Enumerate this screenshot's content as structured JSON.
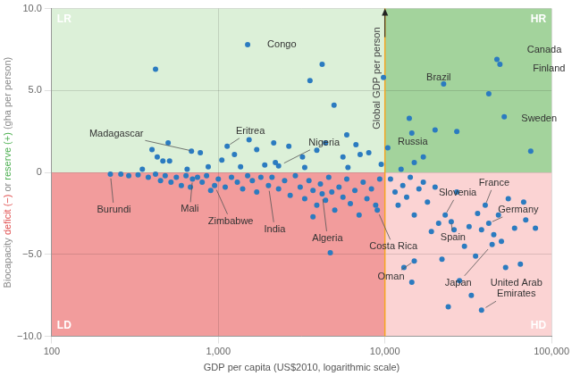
{
  "chart_data": {
    "type": "scatter",
    "x_label": "GDP per capita (US$2010, logarithmic scale)",
    "y_label": [
      {
        "text": "Biocapacity ",
        "color": "#8a8a8a"
      },
      {
        "text": "deficit (−)",
        "color": "#e05050"
      },
      {
        "text": " or ",
        "color": "#8a8a8a"
      },
      {
        "text": "reserve (+)",
        "color": "#4caf50"
      },
      {
        "text": " (gha per person)",
        "color": "#8a8a8a"
      }
    ],
    "log": "x",
    "grid": true,
    "marker": "circle",
    "color": "#2b7bc0",
    "xlim": [
      100,
      100000
    ],
    "xticks": [
      100,
      {
        "value": 1000,
        "label": "1,000"
      },
      {
        "value": 10000,
        "label": "10,000"
      },
      {
        "value": 100000,
        "label": "100,000"
      }
    ],
    "ylim": [
      -10,
      10
    ],
    "yticks": [
      {
        "value": -10,
        "label": "−10.0"
      },
      {
        "value": -5,
        "label": "−5.0"
      },
      0,
      {
        "value": 5,
        "label": "5.0"
      },
      {
        "value": 10,
        "label": "10.0"
      }
    ],
    "vertical_line": {
      "x": 10000,
      "label": "Global GDP per person",
      "color": "#f5a623"
    },
    "quadrant_split_y": 0,
    "quadrants": [
      {
        "label": "LR",
        "position": "top-left",
        "color": "#dcf0d8"
      },
      {
        "label": "HR",
        "position": "top-right",
        "color": "#a3d39c"
      },
      {
        "label": "LD",
        "position": "bottom-left",
        "color": "#f29c9c"
      },
      {
        "label": "HD",
        "position": "bottom-right",
        "color": "#fbd3d3"
      }
    ],
    "x": [
      1500,
      780,
      1130,
      2300,
      9800,
      10400,
      47000,
      49000,
      52000,
      225,
      700,
      950,
      2000,
      4200,
      9000,
      23000,
      40000,
      42000,
      25000,
      15000,
      44000,
      38000,
      420,
      400,
      430,
      465,
      500,
      510,
      690,
      1050,
      1250,
      1360,
      1530,
      1700,
      2150,
      2650,
      3550,
      4200,
      4950,
      4400,
      5900,
      6700,
      7100,
      8000,
      5600,
      3900,
      3200,
      2200,
      1900,
      870,
      650,
      350,
      3300,
      6000,
      9500,
      14000,
      14500,
      15000,
      17000,
      20000,
      22500,
      27000,
      42000,
      75000,
      12500,
      260,
      290,
      330,
      380,
      420,
      450,
      480,
      520,
      560,
      600,
      640,
      680,
      750,
      800,
      850,
      900,
      1000,
      1100,
      1200,
      1300,
      1400,
      1500,
      1600,
      1700,
      1800,
      2100,
      2300,
      2500,
      2700,
      2900,
      3100,
      3300,
      3500,
      3700,
      3900,
      4100,
      4400,
      4600,
      4800,
      5000,
      5300,
      5600,
      5900,
      6200,
      6600,
      7000,
      7400,
      7800,
      8300,
      8800,
      9300,
      4700,
      3700,
      10800,
      11500,
      12000,
      12800,
      13500,
      14200,
      15000,
      16000,
      17000,
      18000,
      19000,
      20000,
      21000,
      22000,
      24000,
      26000,
      27000,
      28000,
      30000,
      32000,
      33000,
      35000,
      36000,
      38000,
      45000,
      48000,
      50000,
      53000,
      55000,
      60000,
      65000,
      70000,
      80000,
      68000,
      14500,
      13000
    ],
    "values": [
      7.8,
      1.2,
      1.6,
      0.4,
      5.8,
      1.5,
      6.9,
      6.6,
      3.4,
      -0.1,
      -0.4,
      -0.8,
      -0.8,
      -1.3,
      -2.3,
      -2.6,
      -2.0,
      -3.1,
      -3.0,
      -5.4,
      -4.4,
      -8.4,
      6.3,
      1.4,
      0.95,
      0.7,
      1.8,
      0.7,
      1.3,
      0.75,
      1.1,
      0.35,
      2.0,
      1.4,
      1.8,
      1.6,
      5.6,
      6.6,
      4.1,
      1.8,
      2.3,
      1.7,
      1.1,
      1.2,
      0.95,
      1.35,
      0.95,
      0.6,
      0.45,
      0.35,
      0.2,
      0.2,
      0.3,
      0.3,
      0.5,
      3.3,
      2.4,
      0.6,
      0.95,
      2.6,
      5.4,
      2.5,
      4.8,
      1.3,
      0.2,
      -0.1,
      -0.2,
      -0.15,
      -0.3,
      -0.1,
      -0.5,
      -0.2,
      -0.6,
      -0.3,
      -0.8,
      -0.2,
      -0.9,
      -0.3,
      -0.6,
      -0.2,
      -1.1,
      -0.4,
      -0.9,
      -0.3,
      -0.6,
      -1.0,
      -0.2,
      -0.5,
      -1.2,
      -0.3,
      -0.3,
      -1.0,
      -0.5,
      -1.4,
      -0.2,
      -0.9,
      -1.6,
      -0.5,
      -1.1,
      -2.0,
      -0.7,
      -1.7,
      -0.3,
      -1.2,
      -2.3,
      -0.9,
      -1.5,
      -0.4,
      -1.9,
      -1.1,
      -2.6,
      -0.6,
      -1.6,
      -1.0,
      -2.0,
      -0.4,
      -4.9,
      -2.7,
      -0.4,
      -1.2,
      -2.0,
      -0.8,
      -1.5,
      -0.3,
      -2.6,
      -1.0,
      -0.6,
      -1.8,
      -3.6,
      -0.9,
      -3.1,
      -5.3,
      -8.2,
      -3.5,
      -1.2,
      -6.6,
      -4.5,
      -3.3,
      -7.5,
      -5.1,
      -2.5,
      -3.5,
      -3.8,
      -2.6,
      -4.2,
      -5.8,
      -1.6,
      -3.4,
      -5.6,
      -2.9,
      -3.4,
      -1.8,
      -6.7,
      -5.8
    ],
    "point_labels": [
      "Congo",
      "Madagascar",
      "Eritrea",
      "Nigeria",
      "Brazil",
      "Russia",
      "Canada",
      "Finland",
      "Sweden",
      "Burundi",
      "Mali",
      "Zimbabwe",
      "India",
      "Algeria",
      "Costa Rica",
      "Slovenia",
      "France",
      "Germany",
      "Spain",
      "Oman",
      "Japan",
      "United Arab Emirates",
      null,
      null,
      null,
      null,
      null,
      null,
      null,
      null,
      null,
      null,
      null,
      null,
      null,
      null,
      null,
      null,
      null,
      null,
      null,
      null,
      null,
      null,
      null,
      null,
      null,
      null,
      null,
      null,
      null,
      null,
      null,
      null,
      null,
      null,
      null,
      null,
      null,
      null,
      null,
      null,
      null,
      null,
      null,
      null,
      null,
      null,
      null,
      null,
      null,
      null,
      null,
      null,
      null,
      null,
      null,
      null,
      null,
      null,
      null,
      null,
      null,
      null,
      null,
      null,
      null,
      null,
      null,
      null,
      null,
      null,
      null,
      null,
      null,
      null,
      null,
      null,
      null,
      null,
      null,
      null,
      null,
      null,
      null,
      null,
      null,
      null,
      null,
      null,
      null,
      null,
      null,
      null,
      null,
      null,
      null,
      null,
      null,
      null,
      null,
      null,
      null,
      null,
      null,
      null,
      null,
      null,
      null,
      null,
      null,
      null,
      null,
      null,
      null,
      null,
      null,
      null,
      null,
      null,
      null,
      null,
      null,
      null,
      null,
      null,
      null,
      null,
      null,
      null,
      null,
      null,
      null,
      null
    ]
  }
}
